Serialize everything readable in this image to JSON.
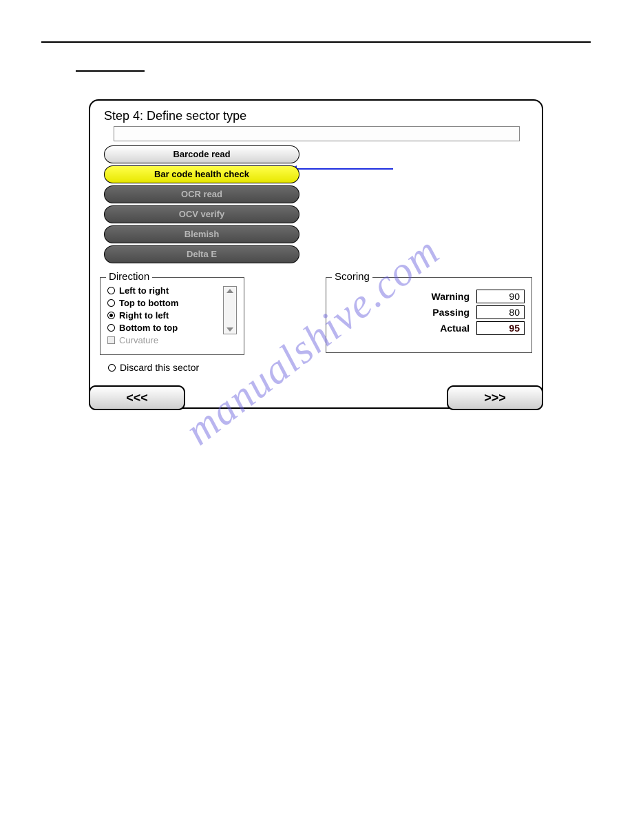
{
  "dialog": {
    "title": "Step 4: Define sector type",
    "buttons": [
      {
        "label": "Barcode read",
        "style": "light"
      },
      {
        "label": "Bar code health check",
        "style": "yellow"
      },
      {
        "label": "OCR read",
        "style": "dark"
      },
      {
        "label": "OCV verify",
        "style": "dark"
      },
      {
        "label": "Blemish",
        "style": "dark"
      },
      {
        "label": "Delta E",
        "style": "dark"
      }
    ],
    "direction": {
      "legend": "Direction",
      "options": [
        "Left to right",
        "Top to bottom",
        "Right to left",
        "Bottom to top"
      ],
      "selected": "Right to left",
      "curvature_label": "Curvature"
    },
    "discard_label": "Discard this sector",
    "scoring": {
      "legend": "Scoring",
      "warning_label": "Warning",
      "warning_value": "90",
      "passing_label": "Passing",
      "passing_value": "80",
      "actual_label": "Actual",
      "actual_value": "95",
      "actual_bg": "#ff0000"
    },
    "nav": {
      "prev": "<<<",
      "next": ">>>"
    }
  },
  "watermark": "manualshive.com"
}
